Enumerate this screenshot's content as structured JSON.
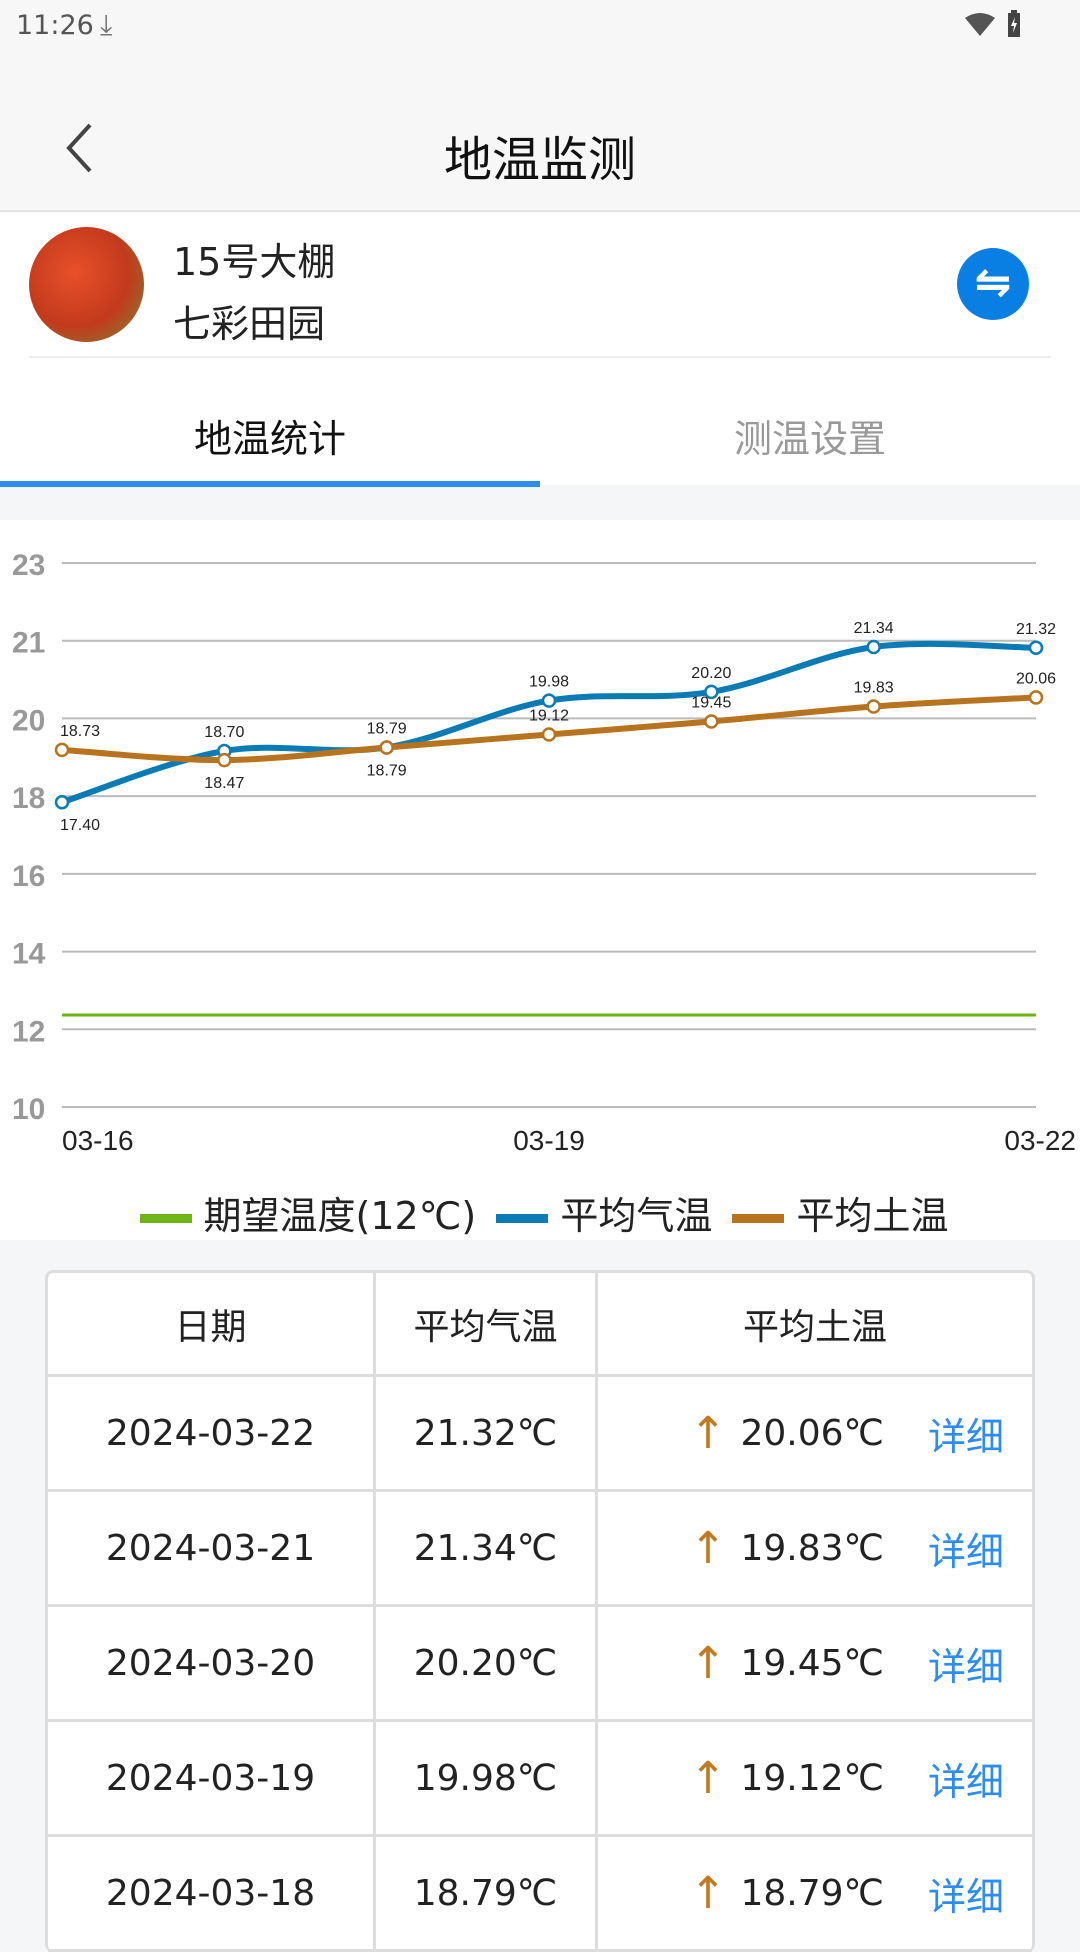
{
  "status_bar": {
    "time": "11:26",
    "icons": [
      "download-icon",
      "wifi-icon",
      "battery-charging-icon"
    ]
  },
  "header": {
    "title": "地温监测",
    "back_icon": "chevron-left-icon"
  },
  "greenhouse": {
    "name": "15号大棚",
    "farm": "七彩田园",
    "swap_icon": "swap-icon"
  },
  "tabs": [
    {
      "label": "地温统计",
      "active": true
    },
    {
      "label": "测温设置",
      "active": false
    }
  ],
  "chart_data": {
    "type": "line",
    "x": [
      "03-16",
      "03-17",
      "03-18",
      "03-19",
      "03-20",
      "03-21",
      "03-22"
    ],
    "x_tick_labels": [
      "03-16",
      "03-19",
      "03-22"
    ],
    "y_tick_labels": [
      "23",
      "21",
      "20",
      "18",
      "16",
      "14",
      "12",
      "10"
    ],
    "ylim": [
      10,
      23
    ],
    "grid": true,
    "legend_position": "bottom",
    "series": [
      {
        "name": "期望温度(12℃)",
        "color": "#6fb516",
        "values": [
          12,
          12,
          12,
          12,
          12,
          12,
          12
        ],
        "point_labels": false
      },
      {
        "name": "平均气温",
        "color": "#0a7bb5",
        "values": [
          17.4,
          18.7,
          18.79,
          19.98,
          20.2,
          21.34,
          21.32
        ],
        "point_labels": true
      },
      {
        "name": "平均土温",
        "color": "#b8731f",
        "values": [
          18.73,
          18.47,
          18.79,
          19.12,
          19.45,
          19.83,
          20.06
        ],
        "point_labels": true
      }
    ]
  },
  "table": {
    "headers": [
      "日期",
      "平均气温",
      "平均土温"
    ],
    "rows": [
      {
        "date": "2024-03-22",
        "air": "21.32℃",
        "soil": "20.06℃",
        "trend": "↑",
        "action": "详细"
      },
      {
        "date": "2024-03-21",
        "air": "21.34℃",
        "soil": "19.83℃",
        "trend": "↑",
        "action": "详细"
      },
      {
        "date": "2024-03-20",
        "air": "20.20℃",
        "soil": "19.45℃",
        "trend": "↑",
        "action": "详细"
      },
      {
        "date": "2024-03-19",
        "air": "19.98℃",
        "soil": "19.12℃",
        "trend": "↑",
        "action": "详细"
      },
      {
        "date": "2024-03-18",
        "air": "18.79℃",
        "soil": "18.79℃",
        "trend": "↑",
        "action": "详细"
      }
    ]
  },
  "colors": {
    "accent": "#2d8cf0",
    "swap_button": "#0a7fe3",
    "trend_up": "#c07a22"
  }
}
